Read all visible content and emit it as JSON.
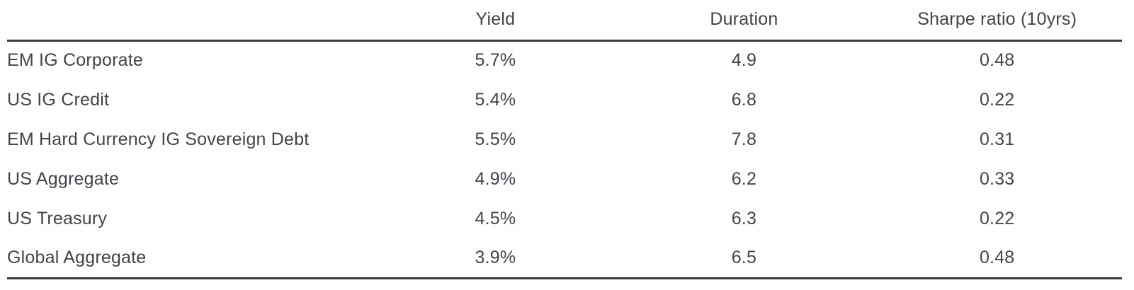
{
  "colors": {
    "background": "#ffffff",
    "text": "#414449",
    "rule": "#3a3a3a"
  },
  "chart_data": {
    "type": "table",
    "columns": [
      "",
      "Yield",
      "Duration",
      "Sharpe ratio (10yrs)"
    ],
    "rows": [
      [
        "EM IG Corporate",
        "5.7%",
        "4.9",
        "0.48"
      ],
      [
        "US IG Credit",
        "5.4%",
        "6.8",
        "0.22"
      ],
      [
        "EM Hard Currency IG Sovereign Debt",
        "5.5%",
        "7.8",
        "0.31"
      ],
      [
        "US Aggregate",
        "4.9%",
        "6.2",
        "0.33"
      ],
      [
        "US Treasury",
        "4.5%",
        "6.3",
        "0.22"
      ],
      [
        "Global Aggregate",
        "3.9%",
        "6.5",
        "0.48"
      ]
    ],
    "numeric": {
      "categories": [
        "EM IG Corporate",
        "US IG Credit",
        "EM Hard Currency IG Sovereign Debt",
        "US Aggregate",
        "US Treasury",
        "Global Aggregate"
      ],
      "series": [
        {
          "name": "Yield (%)",
          "values": [
            5.7,
            5.4,
            5.5,
            4.9,
            4.5,
            3.9
          ]
        },
        {
          "name": "Duration",
          "values": [
            4.9,
            6.8,
            7.8,
            6.2,
            6.3,
            6.5
          ]
        },
        {
          "name": "Sharpe ratio (10yrs)",
          "values": [
            0.48,
            0.22,
            0.31,
            0.33,
            0.22,
            0.48
          ]
        }
      ]
    }
  }
}
